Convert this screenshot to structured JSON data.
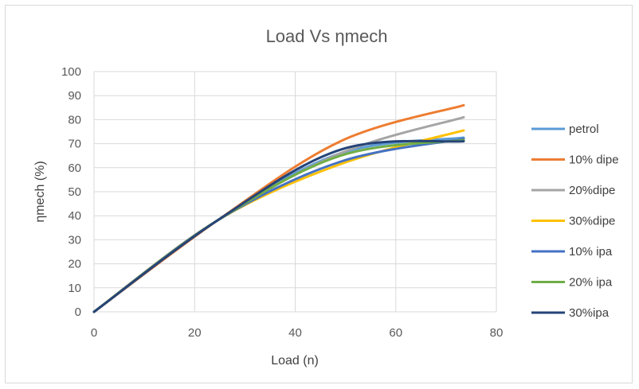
{
  "chart_data": {
    "type": "line",
    "title": "Load Vs ηmech",
    "xlabel": "Load (n)",
    "ylabel": "ηmech (%)",
    "xlim": [
      0,
      80
    ],
    "ylim": [
      0,
      100
    ],
    "x_ticks": [
      0,
      20,
      40,
      60,
      80
    ],
    "y_ticks": [
      0,
      10,
      20,
      30,
      40,
      50,
      60,
      70,
      80,
      90,
      100
    ],
    "grid": true,
    "legend": "right",
    "x": [
      0,
      24.5,
      49,
      73.5
    ],
    "series": [
      {
        "name": "petrol",
        "color": "#5B9BD5",
        "values": [
          0,
          38,
          66,
          72.5
        ]
      },
      {
        "name": "10% dipe",
        "color": "#ED7D31",
        "values": [
          0,
          38,
          71,
          86
        ]
      },
      {
        "name": "20%dipe",
        "color": "#A5A5A5",
        "values": [
          0,
          38,
          66,
          81
        ]
      },
      {
        "name": "30%dipe",
        "color": "#FFC000",
        "values": [
          0,
          38,
          61.5,
          75.5
        ]
      },
      {
        "name": "10% ipa",
        "color": "#4472C4",
        "values": [
          0,
          38,
          62.5,
          72
        ]
      },
      {
        "name": "20% ipa",
        "color": "#70AD47",
        "values": [
          0,
          38,
          65,
          71.5
        ]
      },
      {
        "name": "30%ipa",
        "color": "#264478",
        "values": [
          0,
          38,
          67.5,
          71
        ]
      }
    ]
  }
}
